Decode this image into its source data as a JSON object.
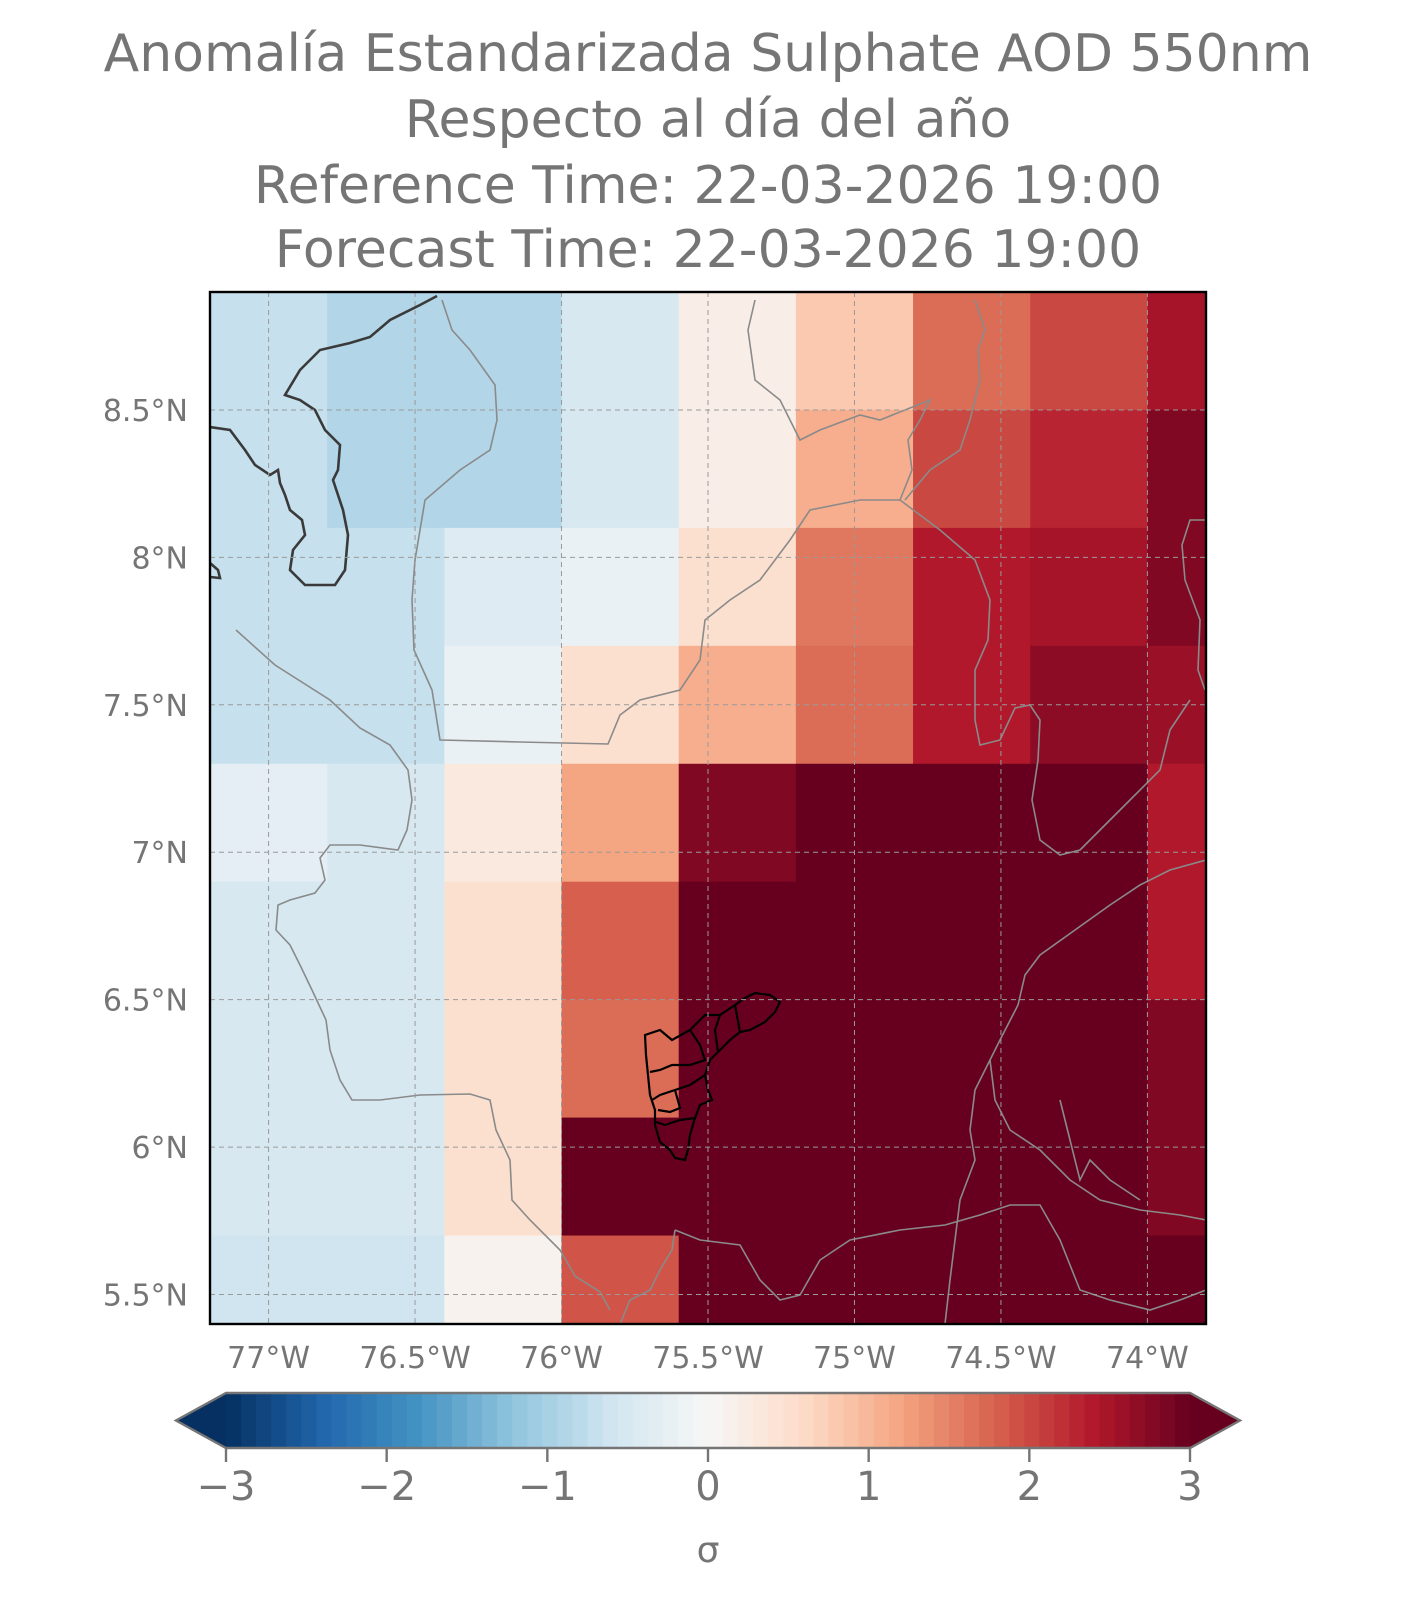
{
  "title": {
    "line1": "Anomalía Estandarizada Sulphate AOD 550nm",
    "line2": "Respecto al día del año",
    "line3": "Reference Time: 22-03-2026 19:00",
    "line4": "Forecast Time: 22-03-2026 19:00"
  },
  "map": {
    "lon_range": [
      -77.2,
      -73.8
    ],
    "lat_range": [
      5.4,
      8.9
    ],
    "cell_deg": 0.4,
    "lon_ticks": [
      {
        "value": -77.0,
        "label": "77°W"
      },
      {
        "value": -76.5,
        "label": "76.5°W"
      },
      {
        "value": -76.0,
        "label": "76°W"
      },
      {
        "value": -75.5,
        "label": "75.5°W"
      },
      {
        "value": -75.0,
        "label": "75°W"
      },
      {
        "value": -74.5,
        "label": "74.5°W"
      },
      {
        "value": -74.0,
        "label": "74°W"
      }
    ],
    "lat_ticks": [
      {
        "value": 8.5,
        "label": "8.5°N"
      },
      {
        "value": 8.0,
        "label": "8°N"
      },
      {
        "value": 7.5,
        "label": "7.5°N"
      },
      {
        "value": 7.0,
        "label": "7°N"
      },
      {
        "value": 6.5,
        "label": "6.5°N"
      },
      {
        "value": 6.0,
        "label": "6°N"
      },
      {
        "value": 5.5,
        "label": "5.5°N"
      }
    ],
    "grid_rows_north_to_south": [
      [
        -0.7,
        -0.9,
        -0.9,
        -0.5,
        0.2,
        0.8,
        1.7,
        2.0,
        2.5
      ],
      [
        -0.7,
        -0.9,
        -0.9,
        -0.5,
        0.2,
        1.1,
        2.0,
        2.3,
        2.8
      ],
      [
        -0.7,
        -0.7,
        -0.4,
        -0.2,
        0.5,
        1.6,
        2.4,
        2.5,
        2.8
      ],
      [
        -0.7,
        -0.7,
        -0.2,
        0.5,
        1.1,
        1.7,
        2.4,
        2.7,
        2.6
      ],
      [
        -0.3,
        -0.5,
        0.3,
        1.2,
        2.8,
        3.2,
        3.2,
        3.1,
        2.4
      ],
      [
        -0.5,
        -0.5,
        0.5,
        1.8,
        3.2,
        3.2,
        3.2,
        3.2,
        2.4
      ],
      [
        -0.5,
        -0.5,
        0.5,
        1.7,
        3.2,
        3.2,
        3.2,
        3.2,
        2.8
      ],
      [
        -0.5,
        -0.5,
        0.5,
        3.2,
        3.2,
        3.2,
        3.2,
        3.2,
        2.8
      ],
      [
        -0.6,
        -0.6,
        0.1,
        1.9,
        3.2,
        3.2,
        3.2,
        3.2,
        3.2
      ]
    ]
  },
  "colorbar": {
    "ticks": [
      {
        "value": -3,
        "label": "−3"
      },
      {
        "value": -2,
        "label": "−2"
      },
      {
        "value": -1,
        "label": "−1"
      },
      {
        "value": 0,
        "label": "0"
      },
      {
        "value": 1,
        "label": "1"
      },
      {
        "value": 2,
        "label": "2"
      },
      {
        "value": 3,
        "label": "3"
      }
    ],
    "label": "σ",
    "range": [
      -3,
      3
    ],
    "extend": "both",
    "colormap": "RdBu_r"
  }
}
